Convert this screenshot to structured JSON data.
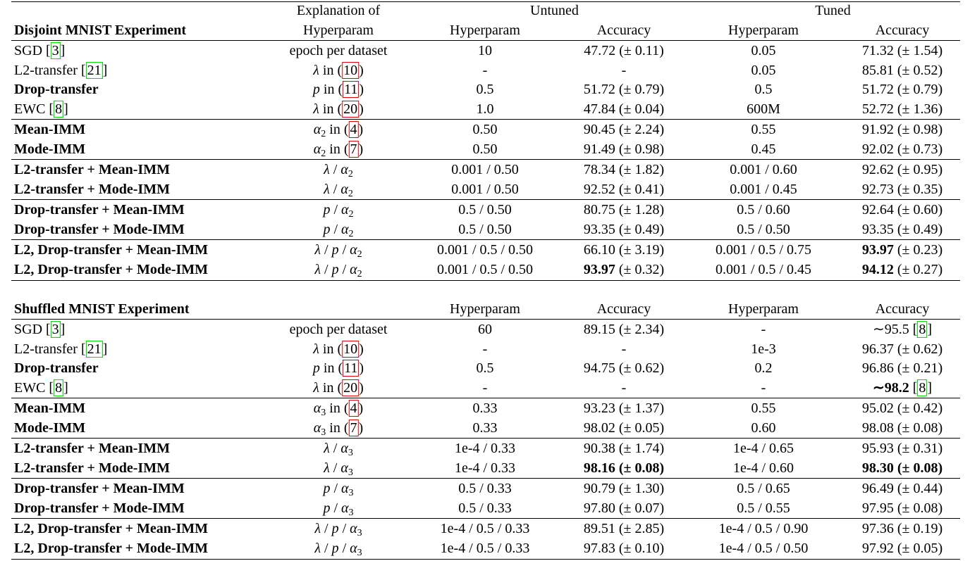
{
  "sections": [
    {
      "title": "Disjoint MNIST Experiment",
      "top_header": [
        "Explanation of",
        "Untuned",
        "Tuned"
      ],
      "columns": [
        "Hyperparam",
        "Hyperparam",
        "Accuracy",
        "Hyperparam",
        "Accuracy"
      ],
      "groups": [
        [
          [
            [
              "SGD [",
              {
                "cite": "3"
              },
              "]"
            ],
            "epoch per dataset",
            "10",
            "47.72 (± 0.11)",
            "0.05",
            "71.32 (± 1.54)"
          ],
          [
            [
              "L2-transfer [",
              {
                "cite": "21"
              },
              "]"
            ],
            [
              {
                "i": "λ"
              },
              " in (",
              {
                "ref": "10"
              },
              ")"
            ],
            "-",
            "-",
            "0.05",
            "85.81 (± 0.52)"
          ],
          [
            [
              {
                "b": "Drop-transfer"
              }
            ],
            [
              {
                "i": "p"
              },
              " in (",
              {
                "ref": "11"
              },
              ")"
            ],
            "0.5",
            "51.72 (± 0.79)",
            "0.5",
            "51.72 (± 0.79)"
          ],
          [
            [
              "EWC [",
              {
                "cite": "8"
              },
              "]"
            ],
            [
              {
                "i": "λ"
              },
              " in (",
              {
                "ref": "20"
              },
              ")"
            ],
            "1.0",
            "47.84 (± 0.04)",
            "600M",
            "52.72 (± 1.36)"
          ]
        ],
        [
          [
            [
              {
                "b": "Mean-IMM"
              }
            ],
            [
              {
                "i": "α"
              },
              {
                "sub": "2"
              },
              " in (",
              {
                "ref": "4"
              },
              ")"
            ],
            "0.50",
            "90.45 (± 2.24)",
            "0.55",
            "91.92 (± 0.98)"
          ],
          [
            [
              {
                "b": "Mode-IMM"
              }
            ],
            [
              {
                "i": "α"
              },
              {
                "sub": "2"
              },
              " in (",
              {
                "ref": "7"
              },
              ")"
            ],
            "0.50",
            "91.49 (± 0.98)",
            "0.45",
            "92.02 (± 0.73)"
          ]
        ],
        [
          [
            [
              {
                "b": "L2-transfer + Mean-IMM"
              }
            ],
            [
              {
                "i": "λ"
              },
              " / ",
              {
                "i": "α"
              },
              {
                "sub": "2"
              }
            ],
            "0.001 / 0.50",
            "78.34 (± 1.82)",
            "0.001 / 0.60",
            "92.62 (± 0.95)"
          ],
          [
            [
              {
                "b": "L2-transfer + Mode-IMM"
              }
            ],
            [
              {
                "i": "λ"
              },
              " / ",
              {
                "i": "α"
              },
              {
                "sub": "2"
              }
            ],
            "0.001 / 0.50",
            "92.52 (± 0.41)",
            "0.001 / 0.45",
            "92.73 (± 0.35)"
          ]
        ],
        [
          [
            [
              {
                "b": "Drop-transfer + Mean-IMM"
              }
            ],
            [
              {
                "i": "p"
              },
              " / ",
              {
                "i": "α"
              },
              {
                "sub": "2"
              }
            ],
            "0.5 / 0.50",
            "80.75 (± 1.28)",
            "0.5 / 0.60",
            "92.64 (± 0.60)"
          ],
          [
            [
              {
                "b": "Drop-transfer + Mode-IMM"
              }
            ],
            [
              {
                "i": "p"
              },
              " / ",
              {
                "i": "α"
              },
              {
                "sub": "2"
              }
            ],
            "0.5 / 0.50",
            "93.35 (± 0.49)",
            "0.5 / 0.50",
            "93.35 (± 0.49)"
          ]
        ],
        [
          [
            [
              {
                "b": "L2, Drop-transfer + Mean-IMM"
              }
            ],
            [
              {
                "i": "λ"
              },
              " / ",
              {
                "i": "p"
              },
              " / ",
              {
                "i": "α"
              },
              {
                "sub": "2"
              }
            ],
            "0.001 / 0.5 / 0.50",
            "66.10 (± 3.19)",
            "0.001 / 0.5 / 0.75",
            [
              {
                "b": "93.97"
              },
              " (± 0.23)"
            ]
          ],
          [
            [
              {
                "b": "L2, Drop-transfer + Mode-IMM"
              }
            ],
            [
              {
                "i": "λ"
              },
              " / ",
              {
                "i": "p"
              },
              " / ",
              {
                "i": "α"
              },
              {
                "sub": "2"
              }
            ],
            "0.001 / 0.5 / 0.50",
            [
              {
                "b": "93.97"
              },
              " (± 0.32)"
            ],
            "0.001 / 0.5 / 0.45",
            [
              {
                "b": "94.12"
              },
              " (± 0.27)"
            ]
          ]
        ]
      ]
    },
    {
      "title": "Shuffled MNIST Experiment",
      "columns": [
        "Hyperparam",
        "Accuracy",
        "Hyperparam",
        "Accuracy"
      ],
      "groups": [
        [
          [
            [
              "SGD [",
              {
                "cite": "3"
              },
              "]"
            ],
            "epoch per dataset",
            "60",
            "89.15 (± 2.34)",
            "-",
            [
              "∼95.5 [",
              {
                "cite": "8"
              },
              "]"
            ]
          ],
          [
            [
              "L2-transfer [",
              {
                "cite": "21"
              },
              "]"
            ],
            [
              {
                "i": "λ"
              },
              " in (",
              {
                "ref": "10"
              },
              ")"
            ],
            "-",
            "-",
            "1e-3",
            "96.37 (± 0.62)"
          ],
          [
            [
              {
                "b": "Drop-transfer"
              }
            ],
            [
              {
                "i": "p"
              },
              " in (",
              {
                "ref": "11"
              },
              ")"
            ],
            "0.5",
            "94.75 (± 0.62)",
            "0.2",
            "96.86 (± 0.21)"
          ],
          [
            [
              "EWC [",
              {
                "cite": "8"
              },
              "]"
            ],
            [
              {
                "i": "λ"
              },
              " in (",
              {
                "ref": "20"
              },
              ")"
            ],
            "-",
            "-",
            "-",
            [
              {
                "b": "∼98.2"
              },
              " [",
              {
                "cite": "8"
              },
              "]"
            ]
          ]
        ],
        [
          [
            [
              {
                "b": "Mean-IMM"
              }
            ],
            [
              {
                "i": "α"
              },
              {
                "sub": "3"
              },
              " in (",
              {
                "ref": "4"
              },
              ")"
            ],
            "0.33",
            "93.23 (± 1.37)",
            "0.55",
            "95.02 (± 0.42)"
          ],
          [
            [
              {
                "b": "Mode-IMM"
              }
            ],
            [
              {
                "i": "α"
              },
              {
                "sub": "3"
              },
              " in (",
              {
                "ref": "7"
              },
              ")"
            ],
            "0.33",
            "98.02 (± 0.05)",
            "0.60",
            "98.08 (± 0.08)"
          ]
        ],
        [
          [
            [
              {
                "b": "L2-transfer + Mean-IMM"
              }
            ],
            [
              {
                "i": "λ"
              },
              " / ",
              {
                "i": "α"
              },
              {
                "sub": "3"
              }
            ],
            "1e-4 / 0.33",
            "90.38 (± 1.74)",
            "1e-4 / 0.65",
            "95.93 (± 0.31)"
          ],
          [
            [
              {
                "b": "L2-transfer + Mode-IMM"
              }
            ],
            [
              {
                "i": "λ"
              },
              " / ",
              {
                "i": "α"
              },
              {
                "sub": "3"
              }
            ],
            "1e-4 / 0.33",
            [
              {
                "b": "98.16 (± 0.08)"
              }
            ],
            "1e-4 / 0.60",
            [
              {
                "b": "98.30 (± 0.08)"
              }
            ]
          ]
        ],
        [
          [
            [
              {
                "b": "Drop-transfer + Mean-IMM"
              }
            ],
            [
              {
                "i": "p"
              },
              " / ",
              {
                "i": "α"
              },
              {
                "sub": "3"
              }
            ],
            "0.5 / 0.33",
            "90.79 (± 1.30)",
            "0.5 / 0.65",
            "96.49 (± 0.44)"
          ],
          [
            [
              {
                "b": "Drop-transfer + Mode-IMM"
              }
            ],
            [
              {
                "i": "p"
              },
              " / ",
              {
                "i": "α"
              },
              {
                "sub": "3"
              }
            ],
            "0.5 / 0.33",
            "97.80 (± 0.07)",
            "0.5 / 0.55",
            "97.95 (± 0.08)"
          ]
        ],
        [
          [
            [
              {
                "b": "L2, Drop-transfer + Mean-IMM"
              }
            ],
            [
              {
                "i": "λ"
              },
              " / ",
              {
                "i": "p"
              },
              " / ",
              {
                "i": "α"
              },
              {
                "sub": "3"
              }
            ],
            "1e-4 / 0.5 / 0.33",
            "89.51 (± 2.85)",
            "1e-4 / 0.5 / 0.90",
            "97.36 (± 0.19)"
          ],
          [
            [
              {
                "b": "L2, Drop-transfer + Mode-IMM"
              }
            ],
            [
              {
                "i": "λ"
              },
              " / ",
              {
                "i": "p"
              },
              " / ",
              {
                "i": "α"
              },
              {
                "sub": "3"
              }
            ],
            "1e-4 / 0.5 / 0.33",
            "97.83 (± 0.10)",
            "1e-4 / 0.5 / 0.50",
            "97.92 (± 0.05)"
          ]
        ]
      ]
    }
  ]
}
